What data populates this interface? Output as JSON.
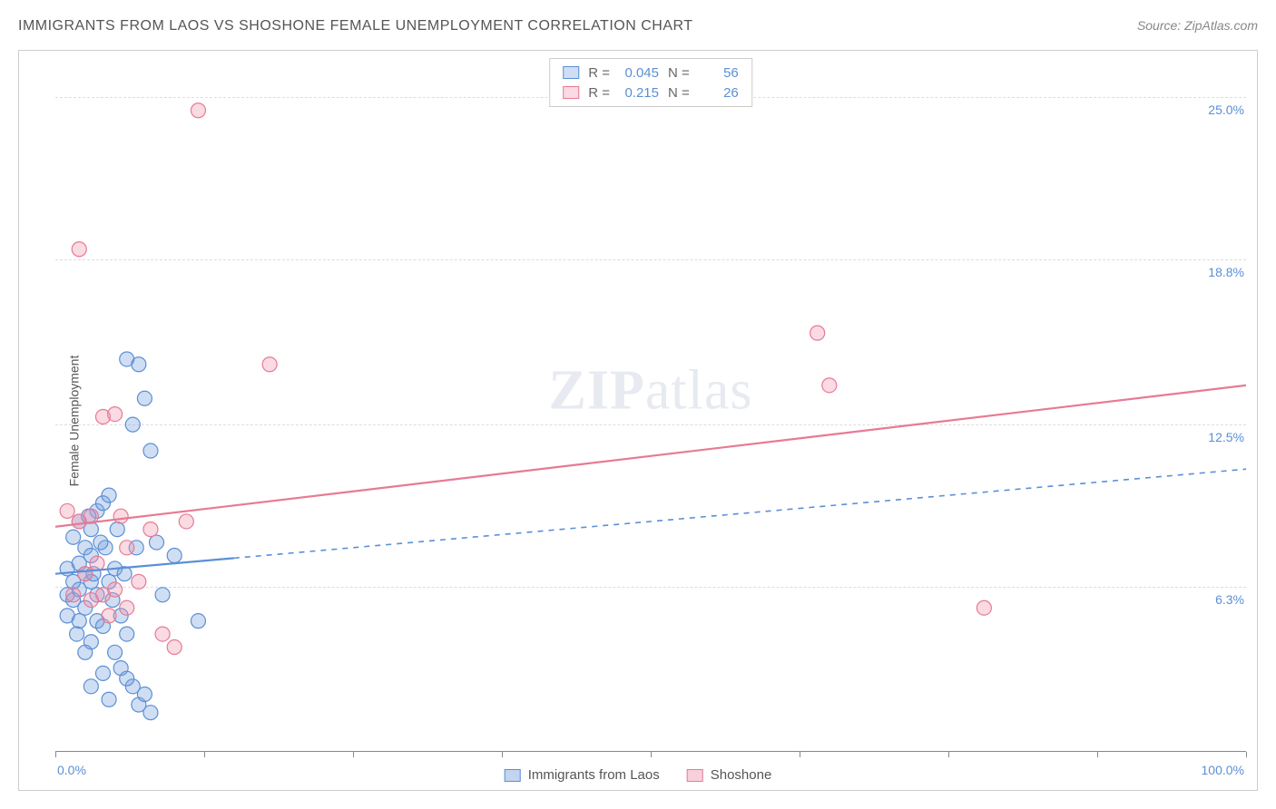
{
  "header": {
    "title": "IMMIGRANTS FROM LAOS VS SHOSHONE FEMALE UNEMPLOYMENT CORRELATION CHART",
    "source": "Source: ZipAtlas.com"
  },
  "watermark": {
    "bold": "ZIP",
    "light": "atlas"
  },
  "chart": {
    "type": "scatter-correlation",
    "y_label": "Female Unemployment",
    "background_color": "#ffffff",
    "grid_color": "#dddddd",
    "axis_color": "#888888",
    "tick_label_color": "#5b8fd6",
    "xlim": [
      0,
      100
    ],
    "ylim": [
      0,
      26.5
    ],
    "x_ticks": [
      0,
      12.5,
      25,
      37.5,
      50,
      62.5,
      75,
      87.5,
      100
    ],
    "x_tick_labels": {
      "left": "0.0%",
      "right": "100.0%"
    },
    "y_gridlines": [
      6.3,
      12.5,
      18.8,
      25.0
    ],
    "y_tick_labels": [
      "6.3%",
      "12.5%",
      "18.8%",
      "25.0%"
    ],
    "series": [
      {
        "name": "Immigrants from Laos",
        "stroke": "#5b8fd6",
        "fill": "rgba(120,160,220,0.35)",
        "marker_border": "#5b8fd6",
        "marker_radius": 8,
        "R": "0.045",
        "N": "56",
        "trend": {
          "x1": 0,
          "y1": 6.8,
          "x2": 100,
          "y2": 10.8,
          "solid_until_x": 15,
          "dash": "6 6"
        },
        "points": [
          [
            1,
            6
          ],
          [
            1.5,
            5.8
          ],
          [
            2,
            6.2
          ],
          [
            2.5,
            5.5
          ],
          [
            3,
            6.5
          ],
          [
            3.5,
            6.0
          ],
          [
            1,
            7
          ],
          [
            2,
            7.2
          ],
          [
            2.5,
            7.8
          ],
          [
            3,
            8.5
          ],
          [
            3.5,
            9.2
          ],
          [
            4,
            9.5
          ],
          [
            4.5,
            9.8
          ],
          [
            1.5,
            8.2
          ],
          [
            2,
            8.8
          ],
          [
            2.5,
            6.8
          ],
          [
            3,
            7.5
          ],
          [
            3.5,
            5.0
          ],
          [
            4,
            4.8
          ],
          [
            4.5,
            6.5
          ],
          [
            5,
            7.0
          ],
          [
            5.5,
            5.2
          ],
          [
            6,
            4.5
          ],
          [
            6.5,
            2.5
          ],
          [
            7,
            1.8
          ],
          [
            7.5,
            2.2
          ],
          [
            8,
            1.5
          ],
          [
            5,
            3.8
          ],
          [
            5.5,
            3.2
          ],
          [
            6,
            2.8
          ],
          [
            4,
            3.0
          ],
          [
            4.5,
            2.0
          ],
          [
            3,
            2.5
          ],
          [
            8.5,
            8.0
          ],
          [
            9,
            6.0
          ],
          [
            10,
            7.5
          ],
          [
            12,
            5.0
          ],
          [
            6,
            15.0
          ],
          [
            7,
            14.8
          ],
          [
            6.5,
            12.5
          ],
          [
            7.5,
            13.5
          ],
          [
            8,
            11.5
          ],
          [
            1.5,
            6.5
          ],
          [
            2,
            5.0
          ],
          [
            3,
            4.2
          ],
          [
            2.5,
            3.8
          ],
          [
            1,
            5.2
          ],
          [
            1.8,
            4.5
          ],
          [
            3.2,
            6.8
          ],
          [
            4.2,
            7.8
          ],
          [
            5.2,
            8.5
          ],
          [
            2.8,
            9.0
          ],
          [
            3.8,
            8.0
          ],
          [
            4.8,
            5.8
          ],
          [
            5.8,
            6.8
          ],
          [
            6.8,
            7.8
          ]
        ]
      },
      {
        "name": "Shoshone",
        "stroke": "#e77a94",
        "fill": "rgba(240,150,175,0.35)",
        "marker_border": "#e77a94",
        "marker_radius": 8,
        "R": "0.215",
        "N": "26",
        "trend": {
          "x1": 0,
          "y1": 8.6,
          "x2": 100,
          "y2": 14.0,
          "solid_until_x": 100,
          "dash": ""
        },
        "points": [
          [
            1,
            9.2
          ],
          [
            2,
            8.8
          ],
          [
            3,
            9.0
          ],
          [
            4,
            6.0
          ],
          [
            5,
            6.2
          ],
          [
            6,
            5.5
          ],
          [
            7,
            6.5
          ],
          [
            8,
            8.5
          ],
          [
            9,
            4.5
          ],
          [
            10,
            4.0
          ],
          [
            6,
            7.8
          ],
          [
            4,
            12.8
          ],
          [
            5,
            12.9
          ],
          [
            11,
            8.8
          ],
          [
            2,
            19.2
          ],
          [
            12,
            24.5
          ],
          [
            18,
            14.8
          ],
          [
            65,
            14.0
          ],
          [
            64,
            16.0
          ],
          [
            78,
            5.5
          ],
          [
            3,
            5.8
          ],
          [
            4.5,
            5.2
          ],
          [
            2.5,
            6.8
          ],
          [
            3.5,
            7.2
          ],
          [
            1.5,
            6.0
          ],
          [
            5.5,
            9.0
          ]
        ]
      }
    ],
    "bottom_legend": [
      {
        "label": "Immigrants from Laos",
        "stroke": "#5b8fd6",
        "fill": "rgba(120,160,220,0.45)"
      },
      {
        "label": "Shoshone",
        "stroke": "#e77a94",
        "fill": "rgba(240,150,175,0.45)"
      }
    ]
  }
}
